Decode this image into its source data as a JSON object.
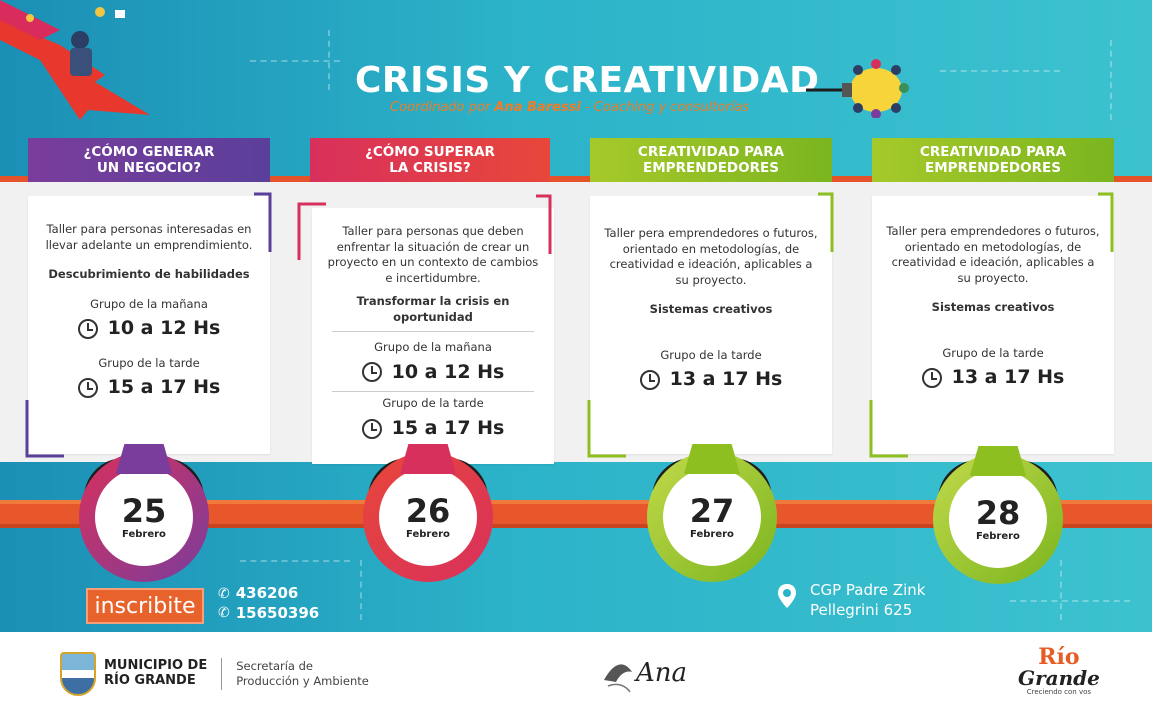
{
  "header": {
    "title": "CRISIS Y CREATIVIDAD",
    "subtitle_prefix": "Coordinado por ",
    "subtitle_name": "Ana Baressi",
    "subtitle_suffix": " - Coaching y consultorías"
  },
  "workshops": [
    {
      "heading_line1": "¿CÓMO GENERAR",
      "heading_line2": "UN NEGOCIO?",
      "description": "Taller para personas interesadas en llevar adelante un emprendimiento.",
      "topic": "Descubrimiento de habilidades",
      "groups": [
        {
          "label": "Grupo de la mañana",
          "time": "10 a 12 Hs"
        },
        {
          "label": "Grupo de la tarde",
          "time": "15 a 17 Hs"
        }
      ],
      "date_day": "25",
      "date_month": "Febrero",
      "color": "#7a3d9c"
    },
    {
      "heading_line1": "¿CÓMO SUPERAR",
      "heading_line2": "LA CRISIS?",
      "description": "Taller para personas que deben enfrentar la situación de crear un proyecto en un contexto de cambios e incertidumbre.",
      "topic": "Transformar la crisis en oportunidad",
      "groups": [
        {
          "label": "Grupo de la mañana",
          "time": "10 a 12 Hs"
        },
        {
          "label": "Grupo de la tarde",
          "time": "15 a 17 Hs"
        }
      ],
      "date_day": "26",
      "date_month": "Febrero",
      "color": "#d8305c"
    },
    {
      "heading_line1": "CREATIVIDAD PARA",
      "heading_line2": "EMPRENDEDORES",
      "description": "Taller pera emprendedores o futuros, orientado en metodologías, de creatividad e ideación, aplicables a su proyecto.",
      "topic": "Sistemas creativos",
      "groups": [
        {
          "label": "Grupo de la tarde",
          "time": "13 a 17 Hs"
        }
      ],
      "date_day": "27",
      "date_month": "Febrero",
      "color": "#8cbf1f"
    },
    {
      "heading_line1": "CREATIVIDAD PARA",
      "heading_line2": "EMPRENDEDORES",
      "description": "Taller pera emprendedores o futuros, orientado en metodologías, de creatividad e ideación, aplicables a su proyecto.",
      "topic": "Sistemas creativos",
      "groups": [
        {
          "label": "Grupo de la tarde",
          "time": "13 a 17 Hs"
        }
      ],
      "date_day": "28",
      "date_month": "Febrero",
      "color": "#8cbf1f"
    }
  ],
  "signup": {
    "button_label": "inscribite",
    "phone1": "436206",
    "phone2": "15650396"
  },
  "location": {
    "name": "CGP Padre Zink",
    "address": "Pellegrini 625"
  },
  "footer": {
    "muni_line1": "MUNICIPIO DE",
    "muni_line2": "RÍO GRANDE",
    "sec_line1": "Secretaría de",
    "sec_line2": "Producción y Ambiente",
    "ana_logo_text": "Ana",
    "rg_line1": "Río",
    "rg_line2": "Grande",
    "rg_tag": "Creciendo con vos"
  },
  "icons": [
    "clock-icon",
    "phone-icon",
    "location-pin-icon",
    "lightbulb-icon",
    "shield-icon",
    "bird-icon"
  ]
}
